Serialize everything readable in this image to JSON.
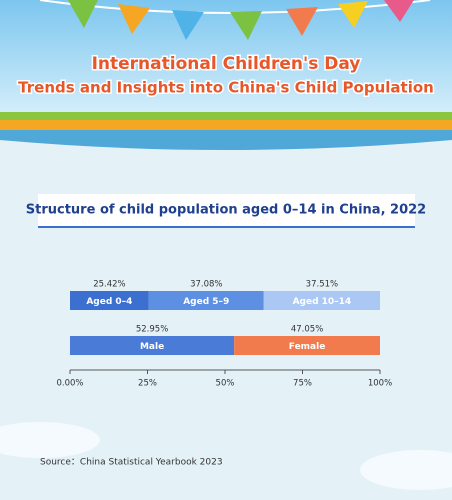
{
  "header": {
    "title": "International Children's Day",
    "subtitle": "Trends and Insights into China's Child Population"
  },
  "chart_data": {
    "type": "stacked-bar",
    "orientation": "horizontal",
    "title": "Structure of child population aged 0–14 in China, 2022",
    "groups": [
      {
        "series": [
          {
            "name": "Aged 0–4",
            "color": "#3b6fd0",
            "value": 25.42,
            "value_label": "25.42%"
          },
          {
            "name": "Aged 5–9",
            "color": "#5d8fe2",
            "value": 37.08,
            "value_label": "37.08%"
          },
          {
            "name": "Aged 10–14",
            "color": "#abc8f5",
            "value": 37.51,
            "value_label": "37.51%"
          }
        ]
      },
      {
        "series": [
          {
            "name": "Male",
            "color": "#4a7bd7",
            "value": 52.95,
            "value_label": "52.95%"
          },
          {
            "name": "Female",
            "color": "#f27b4d",
            "value": 47.05,
            "value_label": "47.05%"
          }
        ]
      }
    ],
    "xlim": [
      0,
      100
    ],
    "xticks": [
      {
        "value": 0,
        "label": "0.00%"
      },
      {
        "value": 25,
        "label": "25%"
      },
      {
        "value": 50,
        "label": "50%"
      },
      {
        "value": 75,
        "label": "75%"
      },
      {
        "value": 100,
        "label": "100%"
      }
    ]
  },
  "footer": {
    "source": "Source：China Statistical Yearbook 2023"
  }
}
